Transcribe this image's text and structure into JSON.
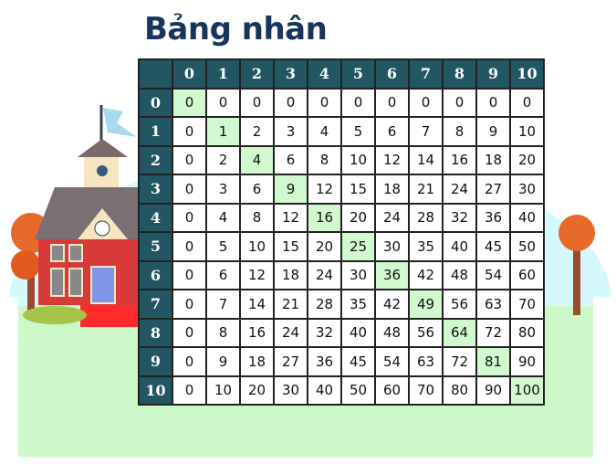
{
  "title": "Bảng nhân",
  "colors": {
    "header": "#215662",
    "diagonal": "#d2f8d0",
    "title": "#16345c",
    "ground": "#ccf7c8",
    "sky": "#d4f8fb"
  },
  "column_headers": [
    "0",
    "1",
    "2",
    "3",
    "4",
    "5",
    "6",
    "7",
    "8",
    "9",
    "10"
  ],
  "row_headers": [
    "0",
    "1",
    "2",
    "3",
    "4",
    "5",
    "6",
    "7",
    "8",
    "9",
    "10"
  ],
  "rows": [
    [
      "0",
      "0",
      "0",
      "0",
      "0",
      "0",
      "0",
      "0",
      "0",
      "0",
      "0"
    ],
    [
      "0",
      "1",
      "2",
      "3",
      "4",
      "5",
      "6",
      "7",
      "8",
      "9",
      "10"
    ],
    [
      "0",
      "2",
      "4",
      "6",
      "8",
      "10",
      "12",
      "14",
      "16",
      "18",
      "20"
    ],
    [
      "0",
      "3",
      "6",
      "9",
      "12",
      "15",
      "18",
      "21",
      "24",
      "27",
      "30"
    ],
    [
      "0",
      "4",
      "8",
      "12",
      "16",
      "20",
      "24",
      "28",
      "32",
      "36",
      "40"
    ],
    [
      "0",
      "5",
      "10",
      "15",
      "20",
      "25",
      "30",
      "35",
      "40",
      "45",
      "50"
    ],
    [
      "0",
      "6",
      "12",
      "18",
      "24",
      "30",
      "36",
      "42",
      "48",
      "54",
      "60"
    ],
    [
      "0",
      "7",
      "14",
      "21",
      "28",
      "35",
      "42",
      "49",
      "56",
      "63",
      "70"
    ],
    [
      "0",
      "8",
      "16",
      "24",
      "32",
      "40",
      "48",
      "56",
      "64",
      "72",
      "80"
    ],
    [
      "0",
      "9",
      "18",
      "27",
      "36",
      "45",
      "54",
      "63",
      "72",
      "81",
      "90"
    ],
    [
      "0",
      "10",
      "20",
      "30",
      "40",
      "50",
      "60",
      "70",
      "80",
      "90",
      "100"
    ]
  ]
}
